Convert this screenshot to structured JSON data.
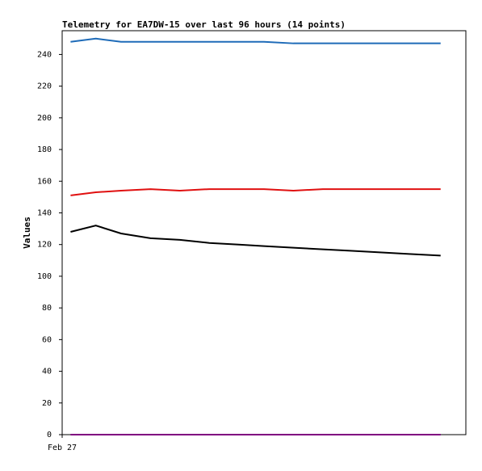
{
  "chart_data": {
    "type": "line",
    "title": "Telemetry for EA7DW-15 over last 96 hours (14 points)",
    "y_label": "Values",
    "x": [
      2,
      8,
      14,
      21,
      28,
      35,
      42,
      48,
      55,
      62,
      69,
      76,
      83,
      90
    ],
    "xlim": [
      0,
      96
    ],
    "xticks": [
      {
        "value": 0,
        "label": "Feb 27"
      }
    ],
    "ylim": [
      0,
      255
    ],
    "yticks": [
      0,
      20,
      40,
      60,
      80,
      100,
      120,
      140,
      160,
      180,
      200,
      220,
      240
    ],
    "series": [
      {
        "color": "#1e6bb8",
        "values": [
          248,
          250,
          248,
          248,
          248,
          248,
          248,
          248,
          247,
          247,
          247,
          247,
          247,
          247
        ]
      },
      {
        "color": "#e01010",
        "values": [
          151,
          153,
          154,
          155,
          154,
          155,
          155,
          155,
          154,
          155,
          155,
          155,
          155,
          155
        ]
      },
      {
        "color": "#000000",
        "values": [
          128,
          132,
          127,
          124,
          123,
          121,
          120,
          119,
          118,
          117,
          116,
          115,
          114,
          113
        ]
      },
      {
        "color": "#800080",
        "values": [
          0,
          0,
          0,
          0,
          0,
          0,
          0,
          0,
          0,
          0,
          0,
          0,
          0,
          0
        ]
      }
    ]
  }
}
